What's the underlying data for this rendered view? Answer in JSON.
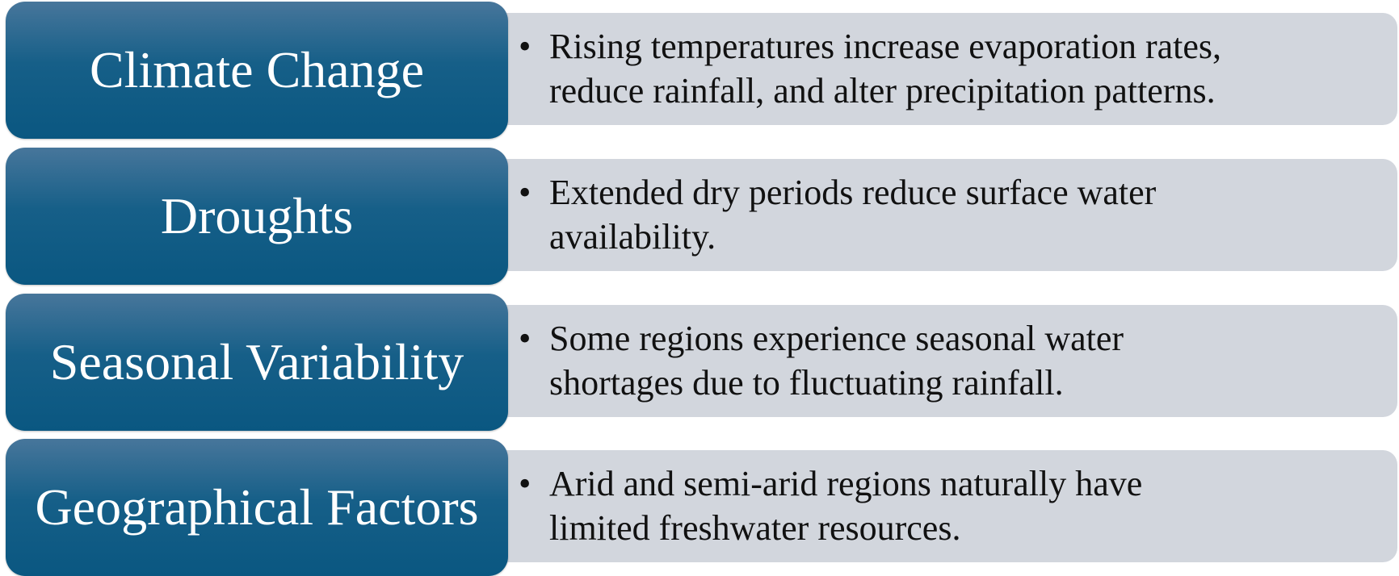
{
  "colors": {
    "label_top": "#47769b",
    "label_bottom": "#0a5781",
    "description_bg": "#d2d6dd",
    "label_text": "#ffffff",
    "description_text": "#111111"
  },
  "rows": [
    {
      "label": "Climate Change",
      "bullet": "•",
      "description": "Rising temperatures increase evaporation rates,\nreduce rainfall, and alter precipitation patterns."
    },
    {
      "label": "Droughts",
      "bullet": "•",
      "description": "Extended dry periods reduce surface water\navailability."
    },
    {
      "label": "Seasonal Variability",
      "bullet": "•",
      "description": "Some regions experience seasonal water\nshortages due to fluctuating rainfall."
    },
    {
      "label": "Geographical Factors",
      "bullet": "•",
      "description": "Arid and semi-arid regions naturally have\nlimited freshwater resources."
    }
  ]
}
